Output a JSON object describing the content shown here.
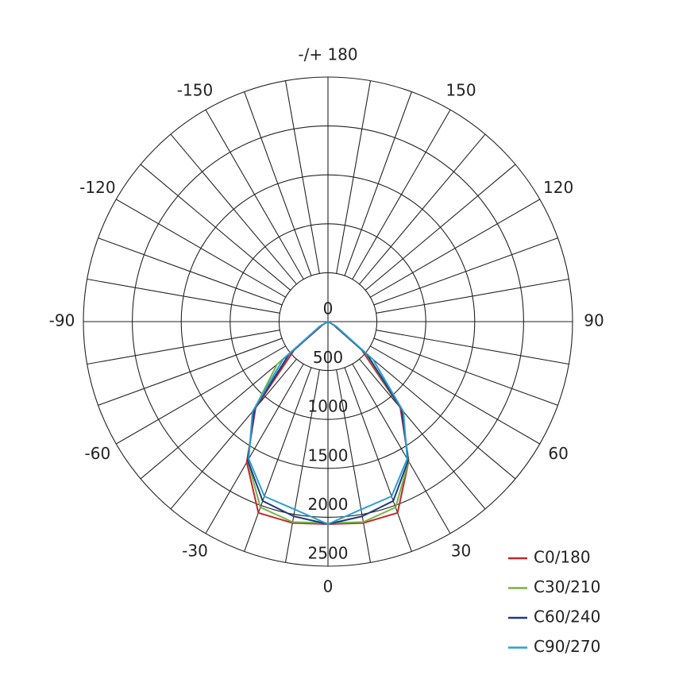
{
  "chart_data": {
    "type": "polar",
    "theta": [
      -90,
      -80,
      -70,
      -60,
      -50,
      -40,
      -30,
      -20,
      -10,
      0,
      10,
      20,
      30,
      40,
      50,
      60,
      70,
      80,
      90
    ],
    "series": [
      {
        "name": "C0/180",
        "color": "#c1272d",
        "values": [
          0,
          0,
          0,
          60,
          450,
          1150,
          1660,
          2080,
          2090,
          2070,
          2090,
          2080,
          1650,
          1150,
          450,
          60,
          0,
          0,
          0
        ]
      },
      {
        "name": "C30/210",
        "color": "#77b244",
        "values": [
          0,
          0,
          0,
          90,
          680,
          1180,
          1640,
          2020,
          2080,
          2060,
          2080,
          2020,
          1650,
          1170,
          500,
          80,
          0,
          0,
          0
        ]
      },
      {
        "name": "C60/240",
        "color": "#1f3a7d",
        "values": [
          0,
          0,
          0,
          80,
          520,
          1170,
          1640,
          1950,
          2020,
          2070,
          2020,
          1950,
          1640,
          1170,
          520,
          80,
          0,
          0,
          0
        ]
      },
      {
        "name": "C90/270",
        "color": "#2b9fd4",
        "values": [
          0,
          0,
          0,
          100,
          600,
          1200,
          1620,
          1900,
          1950,
          2070,
          1950,
          1900,
          1620,
          1200,
          600,
          100,
          0,
          0,
          0
        ]
      }
    ],
    "rlim": [
      0,
      2500
    ],
    "rticks": [
      0,
      500,
      1000,
      1500,
      2000,
      2500
    ],
    "thetaticks": [
      0,
      30,
      60,
      90,
      120,
      150,
      {
        "value": 180,
        "label": "-/+ 180"
      },
      -150,
      -120,
      -90,
      -60,
      -30
    ],
    "theta_grid_step": 10,
    "grid": true,
    "legend": "lower right"
  }
}
